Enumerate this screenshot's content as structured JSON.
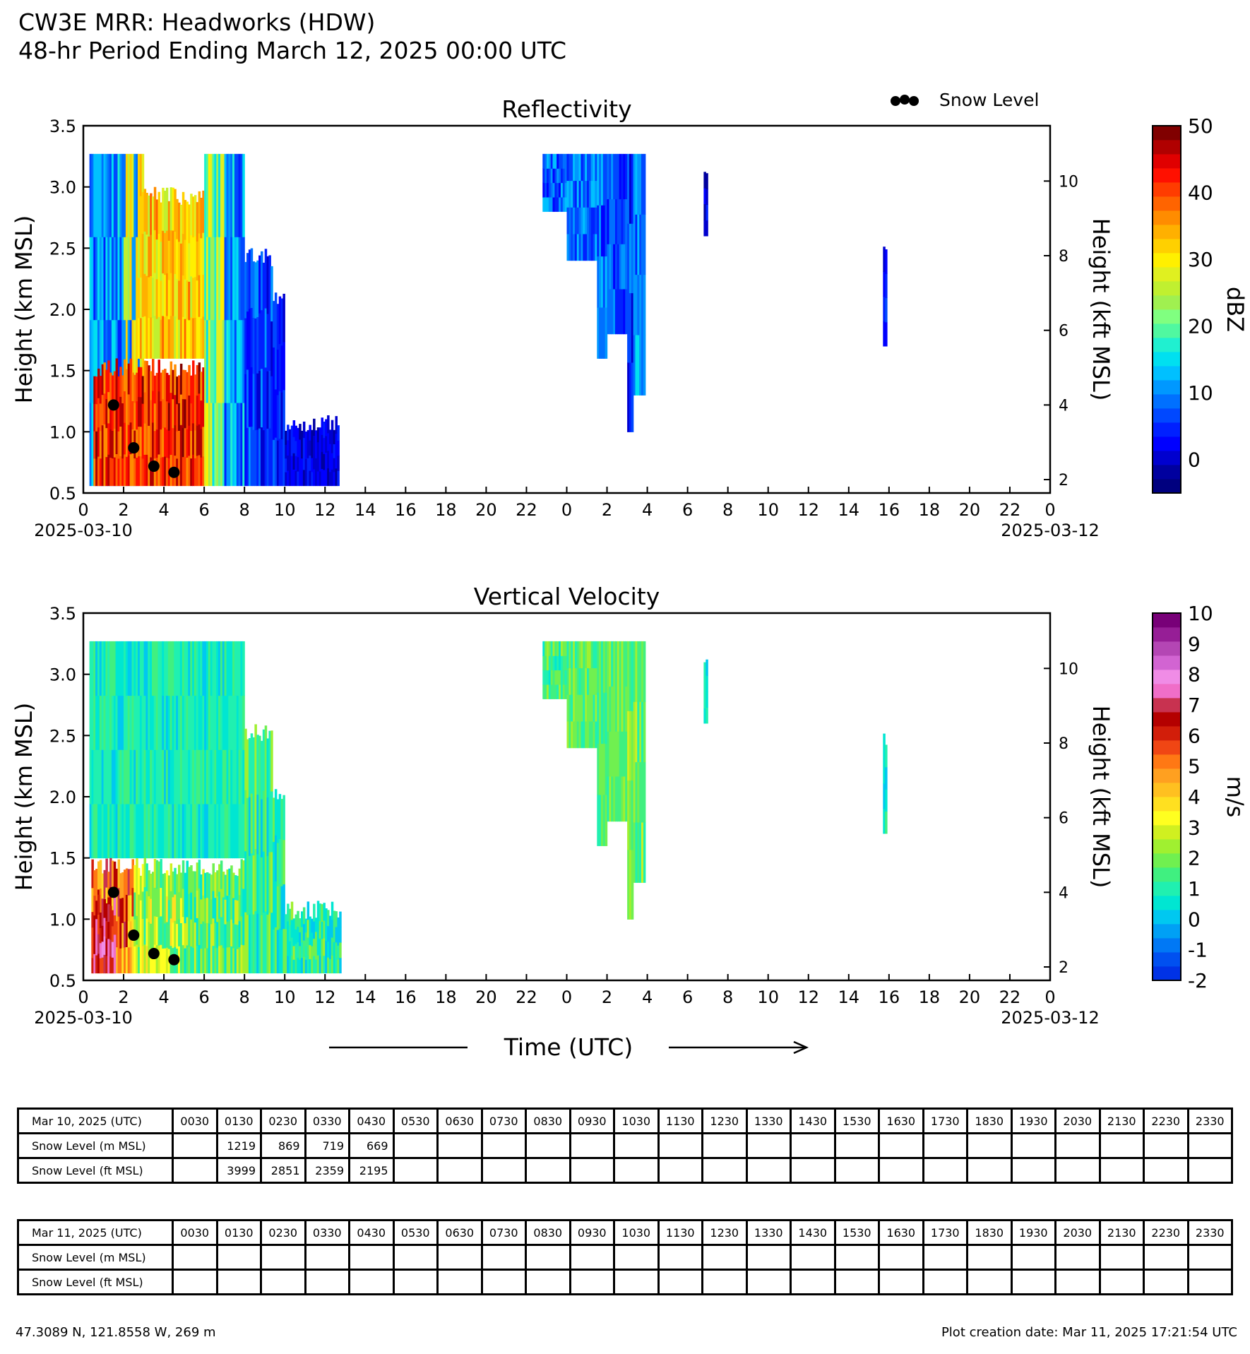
{
  "header": {
    "title": "CW3E MRR: Headworks (HDW)",
    "subtitle": "48-hr Period Ending March 12, 2025 00:00 UTC"
  },
  "colors": {
    "snow_marker": "#000000",
    "dbz_scale": [
      "#00007f",
      "#00009f",
      "#0000cf",
      "#0000ff",
      "#0020ff",
      "#0048ff",
      "#0070ff",
      "#0098ff",
      "#00c0ff",
      "#00e0f0",
      "#20f0d0",
      "#50f8a0",
      "#80ff80",
      "#a0f050",
      "#c0f030",
      "#e0f020",
      "#fff000",
      "#ffd000",
      "#ffb000",
      "#ff8c00",
      "#ff6400",
      "#ff3c00",
      "#ff1000",
      "#e00000",
      "#b00000",
      "#800000"
    ],
    "vel_scale": [
      "#0032e6",
      "#0050f0",
      "#0078f5",
      "#00a0f5",
      "#00c8f0",
      "#00e6d2",
      "#20f0b0",
      "#40f080",
      "#70f050",
      "#a0f030",
      "#d0f020",
      "#ffff20",
      "#ffe020",
      "#ffc020",
      "#ffa020",
      "#ff7814",
      "#f04614",
      "#d21e0a",
      "#b40000",
      "#c83250",
      "#f06ec8",
      "#f08ce6",
      "#d264d2",
      "#b446b4",
      "#961e96",
      "#780078"
    ]
  },
  "chart_data": [
    {
      "type": "heatmap",
      "title": "Reflectivity",
      "ylabel": "Height (km MSL)",
      "ylabel_right": "Height (kft MSL)",
      "ylim": [
        0.5,
        3.5
      ],
      "yticks": [
        "0.5",
        "1.0",
        "1.5",
        "2.0",
        "2.5",
        "3.0",
        "3.5"
      ],
      "yticks_right": [
        {
          "value": 2,
          "label": "2"
        },
        {
          "value": 4,
          "label": "4"
        },
        {
          "value": 6,
          "label": "6"
        },
        {
          "value": 8,
          "label": "8"
        },
        {
          "value": 10,
          "label": "10"
        }
      ],
      "xlim_hours": [
        0,
        48
      ],
      "xticks": [
        "0",
        "2",
        "4",
        "6",
        "8",
        "10",
        "12",
        "14",
        "16",
        "18",
        "20",
        "22",
        "0",
        "2",
        "4",
        "6",
        "8",
        "10",
        "12",
        "14",
        "16",
        "18",
        "20",
        "22",
        "0"
      ],
      "date_start": "2025-03-10",
      "date_end": "2025-03-12",
      "legend": {
        "label": "Snow Level",
        "position": "top-right"
      },
      "colorbar": {
        "label": "dBZ",
        "min": -5,
        "max": 50,
        "ticks": [
          {
            "value": 0,
            "label": "0"
          },
          {
            "value": 10,
            "label": "10"
          },
          {
            "value": 20,
            "label": "20"
          },
          {
            "value": 30,
            "label": "30"
          },
          {
            "value": 40,
            "label": "40"
          },
          {
            "value": 50,
            "label": "50"
          }
        ]
      },
      "data_regions": [
        {
          "t0": 0.3,
          "t1": 2.0,
          "top": 3.27,
          "bottom": 0.56,
          "levels": [
            0.18,
            0.25,
            0.35
          ]
        },
        {
          "t0": 2.0,
          "t1": 3.0,
          "top": 3.27,
          "bottom": 0.56,
          "levels": [
            0.25,
            0.55,
            0.68
          ]
        },
        {
          "t0": 0.5,
          "t1": 6.0,
          "top": 1.6,
          "bottom": 0.56,
          "levels": [
            0.78,
            0.86,
            0.95
          ]
        },
        {
          "t0": 2.7,
          "t1": 6.0,
          "top": 3.0,
          "bottom": 1.6,
          "levels": [
            0.6,
            0.68,
            0.75
          ]
        },
        {
          "t0": 6.0,
          "t1": 7.0,
          "top": 3.27,
          "bottom": 0.56,
          "levels": [
            0.4,
            0.5,
            0.62
          ]
        },
        {
          "t0": 7.0,
          "t1": 8.0,
          "top": 3.27,
          "bottom": 0.56,
          "levels": [
            0.2,
            0.28,
            0.36
          ]
        },
        {
          "t0": 8.0,
          "t1": 9.4,
          "top": 2.5,
          "bottom": 0.56,
          "levels": [
            0.12,
            0.18,
            0.26
          ]
        },
        {
          "t0": 9.4,
          "t1": 10.0,
          "top": 2.15,
          "bottom": 0.56,
          "levels": [
            0.1,
            0.15,
            0.2
          ]
        },
        {
          "t0": 10.0,
          "t1": 12.7,
          "top": 1.15,
          "bottom": 0.56,
          "levels": [
            0.07,
            0.1,
            0.14
          ]
        },
        {
          "t0": 22.8,
          "t1": 24.0,
          "top": 3.27,
          "bottom": 2.8,
          "levels": [
            0.15,
            0.22,
            0.3
          ]
        },
        {
          "t0": 24.0,
          "t1": 25.5,
          "top": 3.27,
          "bottom": 2.4,
          "levels": [
            0.18,
            0.24,
            0.3
          ]
        },
        {
          "t0": 25.5,
          "t1": 26.0,
          "top": 3.27,
          "bottom": 1.6,
          "levels": [
            0.16,
            0.22,
            0.28
          ]
        },
        {
          "t0": 26.0,
          "t1": 27.0,
          "top": 3.27,
          "bottom": 1.8,
          "levels": [
            0.14,
            0.2,
            0.26
          ]
        },
        {
          "t0": 27.0,
          "t1": 27.3,
          "top": 3.27,
          "bottom": 1.0,
          "levels": [
            0.12,
            0.18,
            0.24
          ]
        },
        {
          "t0": 27.3,
          "t1": 27.9,
          "top": 3.27,
          "bottom": 1.3,
          "levels": [
            0.18,
            0.25,
            0.32
          ]
        },
        {
          "t0": 30.8,
          "t1": 31.0,
          "top": 3.15,
          "bottom": 2.6,
          "levels": [
            0.08,
            0.12,
            0.16
          ]
        },
        {
          "t0": 39.7,
          "t1": 39.9,
          "top": 2.55,
          "bottom": 1.7,
          "levels": [
            0.08,
            0.12,
            0.16
          ]
        }
      ],
      "snow_level": {
        "x_hours": [
          1.5,
          2.5,
          3.5,
          4.5
        ],
        "y_km": [
          1.219,
          0.869,
          0.719,
          0.669
        ]
      }
    },
    {
      "type": "heatmap",
      "title": "Vertical Velocity",
      "ylabel": "Height (km MSL)",
      "ylabel_right": "Height (kft MSL)",
      "ylim": [
        0.5,
        3.5
      ],
      "yticks": [
        "0.5",
        "1.0",
        "1.5",
        "2.0",
        "2.5",
        "3.0",
        "3.5"
      ],
      "yticks_right": [
        {
          "value": 2,
          "label": "2"
        },
        {
          "value": 4,
          "label": "4"
        },
        {
          "value": 6,
          "label": "6"
        },
        {
          "value": 8,
          "label": "8"
        },
        {
          "value": 10,
          "label": "10"
        }
      ],
      "xlim_hours": [
        0,
        48
      ],
      "xticks": [
        "0",
        "2",
        "4",
        "6",
        "8",
        "10",
        "12",
        "14",
        "16",
        "18",
        "20",
        "22",
        "0",
        "2",
        "4",
        "6",
        "8",
        "10",
        "12",
        "14",
        "16",
        "18",
        "20",
        "22",
        "0"
      ],
      "date_start": "2025-03-10",
      "date_end": "2025-03-12",
      "xlabel": "Time (UTC)",
      "colorbar": {
        "label": "m/s",
        "min": -2,
        "max": 10,
        "ticks": [
          {
            "value": -2,
            "label": "-2"
          },
          {
            "value": -1,
            "label": "-1"
          },
          {
            "value": 0,
            "label": "0"
          },
          {
            "value": 1,
            "label": "1"
          },
          {
            "value": 2,
            "label": "2"
          },
          {
            "value": 3,
            "label": "3"
          },
          {
            "value": 4,
            "label": "4"
          },
          {
            "value": 5,
            "label": "5"
          },
          {
            "value": 6,
            "label": "6"
          },
          {
            "value": 7,
            "label": "7"
          },
          {
            "value": 8,
            "label": "8"
          },
          {
            "value": 9,
            "label": "9"
          },
          {
            "value": 10,
            "label": "10"
          }
        ]
      },
      "data_regions": [
        {
          "t0": 0.3,
          "t1": 8.0,
          "top": 3.27,
          "bottom": 1.5,
          "levels": [
            0.19,
            0.22,
            0.26
          ]
        },
        {
          "t0": 0.4,
          "t1": 2.5,
          "top": 1.5,
          "bottom": 0.56,
          "levels": [
            0.5,
            0.6,
            0.72
          ]
        },
        {
          "t0": 0.4,
          "t1": 1.6,
          "top": 1.2,
          "bottom": 0.56,
          "levels": [
            0.65,
            0.72,
            0.82
          ]
        },
        {
          "t0": 2.5,
          "t1": 5.0,
          "top": 1.5,
          "bottom": 0.56,
          "levels": [
            0.28,
            0.36,
            0.45
          ]
        },
        {
          "t0": 5.0,
          "t1": 8.0,
          "top": 1.5,
          "bottom": 0.56,
          "levels": [
            0.22,
            0.3,
            0.38
          ]
        },
        {
          "t0": 8.0,
          "t1": 9.4,
          "top": 2.6,
          "bottom": 0.56,
          "levels": [
            0.2,
            0.26,
            0.34
          ]
        },
        {
          "t0": 9.4,
          "t1": 10.0,
          "top": 2.1,
          "bottom": 0.56,
          "levels": [
            0.18,
            0.24,
            0.3
          ]
        },
        {
          "t0": 10.0,
          "t1": 12.8,
          "top": 1.15,
          "bottom": 0.56,
          "levels": [
            0.18,
            0.24,
            0.32
          ]
        },
        {
          "t0": 22.8,
          "t1": 24.0,
          "top": 3.27,
          "bottom": 2.8,
          "levels": [
            0.24,
            0.28,
            0.32
          ]
        },
        {
          "t0": 24.0,
          "t1": 25.5,
          "top": 3.27,
          "bottom": 2.4,
          "levels": [
            0.26,
            0.3,
            0.34
          ]
        },
        {
          "t0": 25.5,
          "t1": 26.0,
          "top": 3.27,
          "bottom": 1.6,
          "levels": [
            0.26,
            0.3,
            0.36
          ]
        },
        {
          "t0": 26.0,
          "t1": 27.0,
          "top": 3.27,
          "bottom": 1.8,
          "levels": [
            0.26,
            0.3,
            0.34
          ]
        },
        {
          "t0": 27.0,
          "t1": 27.3,
          "top": 3.27,
          "bottom": 1.0,
          "levels": [
            0.28,
            0.34,
            0.4
          ]
        },
        {
          "t0": 27.3,
          "t1": 27.9,
          "top": 3.27,
          "bottom": 1.3,
          "levels": [
            0.26,
            0.3,
            0.36
          ]
        },
        {
          "t0": 30.8,
          "t1": 31.0,
          "top": 3.15,
          "bottom": 2.6,
          "levels": [
            0.2,
            0.22,
            0.24
          ]
        },
        {
          "t0": 39.7,
          "t1": 39.9,
          "top": 2.55,
          "bottom": 1.7,
          "levels": [
            0.2,
            0.22,
            0.24
          ]
        }
      ],
      "snow_level": {
        "x_hours": [
          1.5,
          2.5,
          3.5,
          4.5
        ],
        "y_km": [
          1.219,
          0.869,
          0.719,
          0.669
        ]
      }
    }
  ],
  "tables": [
    {
      "date_label": "Mar 10, 2025 (UTC)",
      "times": [
        "0030",
        "0130",
        "0230",
        "0330",
        "0430",
        "0530",
        "0630",
        "0730",
        "0830",
        "0930",
        "1030",
        "1130",
        "1230",
        "1330",
        "1430",
        "1530",
        "1630",
        "1730",
        "1830",
        "1930",
        "2030",
        "2130",
        "2230",
        "2330"
      ],
      "row_m_label": "Snow Level (m MSL)",
      "row_ft_label": "Snow Level (ft MSL)",
      "m": [
        "",
        "1219",
        "869",
        "719",
        "669",
        "",
        "",
        "",
        "",
        "",
        "",
        "",
        "",
        "",
        "",
        "",
        "",
        "",
        "",
        "",
        "",
        "",
        "",
        ""
      ],
      "ft": [
        "",
        "3999",
        "2851",
        "2359",
        "2195",
        "",
        "",
        "",
        "",
        "",
        "",
        "",
        "",
        "",
        "",
        "",
        "",
        "",
        "",
        "",
        "",
        "",
        "",
        ""
      ]
    },
    {
      "date_label": "Mar 11, 2025 (UTC)",
      "times": [
        "0030",
        "0130",
        "0230",
        "0330",
        "0430",
        "0530",
        "0630",
        "0730",
        "0830",
        "0930",
        "1030",
        "1130",
        "1230",
        "1330",
        "1430",
        "1530",
        "1630",
        "1730",
        "1830",
        "1930",
        "2030",
        "2130",
        "2230",
        "2330"
      ],
      "row_m_label": "Snow Level (m MSL)",
      "row_ft_label": "Snow Level (ft MSL)",
      "m": [
        "",
        "",
        "",
        "",
        "",
        "",
        "",
        "",
        "",
        "",
        "",
        "",
        "",
        "",
        "",
        "",
        "",
        "",
        "",
        "",
        "",
        "",
        "",
        ""
      ],
      "ft": [
        "",
        "",
        "",
        "",
        "",
        "",
        "",
        "",
        "",
        "",
        "",
        "",
        "",
        "",
        "",
        "",
        "",
        "",
        "",
        "",
        "",
        "",
        "",
        ""
      ]
    }
  ],
  "footer": {
    "location": "47.3089 N, 121.8558 W, 269 m",
    "creation": "Plot creation date: Mar 11, 2025 17:21:54 UTC"
  }
}
